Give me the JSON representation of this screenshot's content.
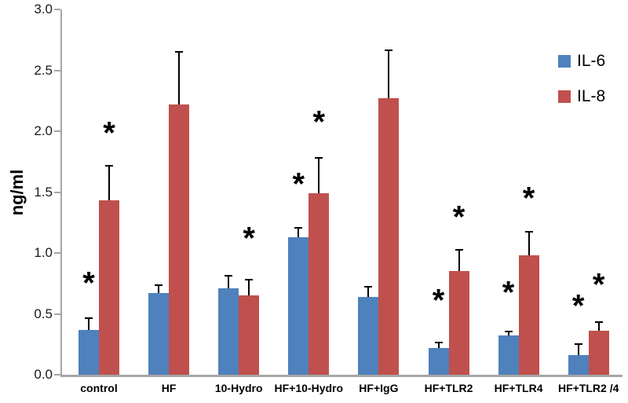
{
  "chart_data": {
    "type": "bar",
    "title": "",
    "xlabel": "",
    "ylabel": "ng/ml",
    "ylim": [
      0.0,
      3.0
    ],
    "ytick_labels": [
      "0.0",
      "0.5",
      "1.0",
      "1.5",
      "2.0",
      "2.5",
      "3.0"
    ],
    "grid": false,
    "legend_position": "top-right",
    "categories": [
      "control",
      "HF",
      "10-Hydro",
      "HF+10-Hydro",
      "HF+IgG",
      "HF+TLR2",
      "HF+TLR4",
      "HF+TLR2 /4"
    ],
    "series": [
      {
        "name": "IL-6",
        "color": "#4F81BD",
        "values": [
          0.37,
          0.67,
          0.71,
          1.13,
          0.64,
          0.22,
          0.32,
          0.16
        ],
        "errors_plus": [
          0.1,
          0.07,
          0.11,
          0.08,
          0.09,
          0.05,
          0.04,
          0.1
        ]
      },
      {
        "name": "IL-8",
        "color": "#C0504D",
        "values": [
          1.43,
          2.22,
          0.65,
          1.49,
          2.27,
          0.85,
          0.98,
          0.36
        ],
        "errors_plus": [
          0.29,
          0.44,
          0.14,
          0.3,
          0.4,
          0.18,
          0.2,
          0.08
        ]
      }
    ],
    "significance_markers": [
      {
        "category": "control",
        "series": "IL-6",
        "y": 0.8
      },
      {
        "category": "control",
        "series": "IL-8",
        "y": 2.03
      },
      {
        "category": "10-Hydro",
        "series": "IL-8",
        "y": 1.17
      },
      {
        "category": "HF+10-Hydro",
        "series": "IL-6",
        "y": 1.61
      },
      {
        "category": "HF+10-Hydro",
        "series": "IL-8",
        "y": 2.12
      },
      {
        "category": "HF+TLR2",
        "series": "IL-6",
        "y": 0.66
      },
      {
        "category": "HF+TLR2",
        "series": "IL-8",
        "y": 1.34
      },
      {
        "category": "HF+TLR4",
        "series": "IL-6",
        "y": 0.72
      },
      {
        "category": "HF+TLR4",
        "series": "IL-8",
        "y": 1.5
      },
      {
        "category": "HF+TLR2 /4",
        "series": "IL-6",
        "y": 0.61
      },
      {
        "category": "HF+TLR2 /4",
        "series": "IL-8",
        "y": 0.79
      }
    ],
    "marker_glyph": "*",
    "axis_color": "#A6A6A6",
    "error_bar_color": "#000000"
  }
}
